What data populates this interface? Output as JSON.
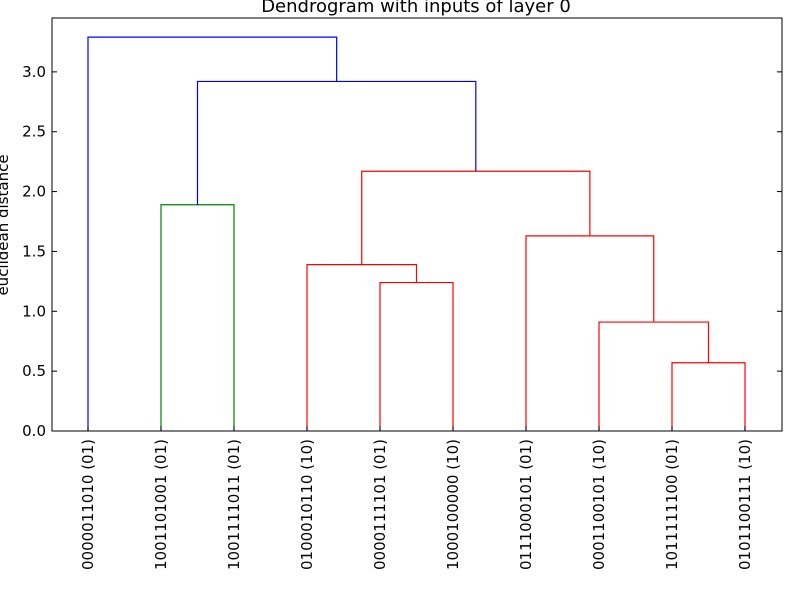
{
  "chart_data": {
    "type": "dendrogram",
    "title": "Dendrogram with inputs of layer 0",
    "xlabel": "",
    "ylabel": "euclidean distance",
    "ylim": [
      0,
      3.45
    ],
    "yticks": [
      "0.0",
      "0.5",
      "1.0",
      "1.5",
      "2.0",
      "2.5",
      "3.0"
    ],
    "leaves": [
      "0000011010 (01)",
      "1001101001 (01)",
      "1001111011 (01)",
      "0100010110 (10)",
      "0000111101 (01)",
      "1000100000 (10)",
      "0111000101 (01)",
      "0001100101 (10)",
      "1011111100 (01)",
      "0101100111 (10)"
    ],
    "colors": {
      "top": "#0000ff",
      "cluster_a": "#008000",
      "cluster_b": "#ff0000"
    },
    "merges": [
      {
        "left": "leaf:8",
        "right": "leaf:9",
        "height": 0.57,
        "color": "cluster_b"
      },
      {
        "left": "leaf:7",
        "right": "node:0",
        "height": 0.91,
        "color": "cluster_b"
      },
      {
        "left": "leaf:4",
        "right": "leaf:5",
        "height": 1.24,
        "color": "cluster_b"
      },
      {
        "left": "leaf:3",
        "right": "node:2",
        "height": 1.39,
        "color": "cluster_b"
      },
      {
        "left": "leaf:6",
        "right": "node:1",
        "height": 1.63,
        "color": "cluster_b"
      },
      {
        "left": "leaf:1",
        "right": "leaf:2",
        "height": 1.89,
        "color": "cluster_a"
      },
      {
        "left": "node:3",
        "right": "node:4",
        "height": 2.17,
        "color": "cluster_b"
      },
      {
        "left": "node:5",
        "right": "node:6",
        "height": 2.92,
        "color": "top"
      },
      {
        "left": "leaf:0",
        "right": "node:7",
        "height": 3.29,
        "color": "top"
      }
    ]
  }
}
